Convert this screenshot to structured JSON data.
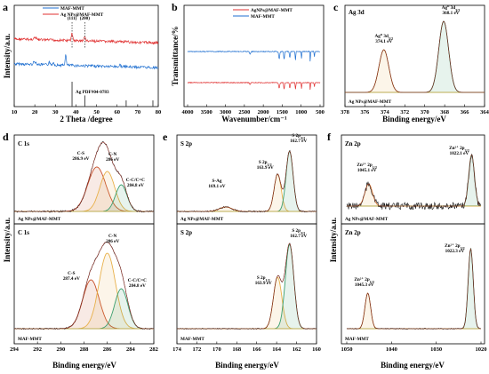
{
  "chart_data": [
    {
      "panel": "a",
      "type": "line",
      "xlabel": "2 Theta /degree",
      "ylabel": "Intensity/a.u.",
      "xlim": [
        10,
        80
      ],
      "xticks": [
        10,
        20,
        30,
        40,
        50,
        60,
        70,
        80
      ],
      "series": [
        {
          "name": "MAF-MMT",
          "color": "#1f6fd0"
        },
        {
          "name": "Ag NPs@MAF-MMT",
          "color": "#e03030"
        }
      ],
      "peak_labels": [
        {
          "x": 38.1,
          "text": "(111)"
        },
        {
          "x": 44.3,
          "text": "(200)"
        }
      ],
      "reference": {
        "name": "Ag PDF#04-0783",
        "x": [
          38.1,
          44.3,
          64.4,
          77.4
        ],
        "h": [
          1.0,
          0.45,
          0.25,
          0.25
        ]
      }
    },
    {
      "panel": "b",
      "type": "line",
      "xlabel": "Wavenumber/cm⁻¹",
      "ylabel": "Transmittance/%",
      "xlim": [
        4000,
        500
      ],
      "xticks": [
        4000,
        3500,
        3000,
        2500,
        2000,
        1500,
        1000,
        500
      ],
      "series": [
        {
          "name": "AgNPs@MAF-MMT",
          "color": "#e03030"
        },
        {
          "name": "MAF-MMT",
          "color": "#1f6fd0"
        }
      ]
    },
    {
      "panel": "c",
      "type": "line",
      "title": "Ag 3d",
      "xlabel": "Binding energy/eV",
      "xlim": [
        378,
        364
      ],
      "xticks": [
        378,
        376,
        374,
        372,
        370,
        368,
        366,
        364
      ],
      "sample": "Ag NPs@MAF-MMT",
      "peaks": [
        {
          "name": "Ag⁰ 3d5/2",
          "text1": "Ag⁰ 3d",
          "sub": "5/2",
          "center": 374.1,
          "label": "374.1 eV",
          "color": "#e8b04a"
        },
        {
          "name": "Ag⁰ 3d3/2",
          "text1": "Ag⁰ 3d",
          "sub": "3/2",
          "center": 368.1,
          "label": "368.1 eV",
          "color": "#3a9e6e"
        }
      ]
    },
    {
      "panel": "d",
      "type": "line",
      "title": "C 1s",
      "xlabel": "Binding energy/eV",
      "ylabel": "Intensity/a.u.",
      "xlim": [
        294,
        282
      ],
      "xticks": [
        294,
        292,
        290,
        288,
        286,
        284,
        282
      ],
      "top": {
        "sample": "Ag NPs@MAF-MMT",
        "peaks": [
          {
            "name": "C-S",
            "center": 286.9,
            "label": "286.9 eV",
            "color": "#c8502a"
          },
          {
            "name": "C-N",
            "center": 286,
            "label": "286 eV",
            "color": "#e8b04a"
          },
          {
            "name": "C-C/C=C",
            "center": 284.8,
            "label": "284.8 eV",
            "color": "#3a9e6e"
          }
        ]
      },
      "bottom": {
        "sample": "MAF-MMT",
        "peaks": [
          {
            "name": "C-S",
            "center": 287.4,
            "label": "287.4 eV",
            "color": "#c8502a"
          },
          {
            "name": "C-N",
            "center": 286,
            "label": "286 eV",
            "color": "#e8b04a"
          },
          {
            "name": "C-C/C=C",
            "center": 284.8,
            "label": "284.8 eV",
            "color": "#3a9e6e"
          }
        ]
      }
    },
    {
      "panel": "e",
      "type": "line",
      "title": "S 2p",
      "xlabel": "Binding energy/eV",
      "xlim": [
        174,
        160
      ],
      "xticks": [
        174,
        172,
        170,
        168,
        166,
        164,
        162,
        160
      ],
      "top": {
        "sample": "Ag NPs@MAF-MMT",
        "peaks": [
          {
            "name": "S-Ag",
            "text1": "S-Ag",
            "center": 169.1,
            "label": "169.1 eV",
            "color": "#e8b04a"
          },
          {
            "name": "S 2p1/2",
            "text1": "S 2p",
            "sub": "1/2",
            "center": 163.9,
            "label": "163.9 eV",
            "color": "#e8b04a"
          },
          {
            "name": "S 2p3/2",
            "text1": "S 2p",
            "sub": "3/2",
            "center": 162.7,
            "label": "162.7 eV",
            "color": "#3a9e6e"
          }
        ]
      },
      "bottom": {
        "sample": "MAF-MMT",
        "peaks": [
          {
            "name": "S 2p1/2",
            "text1": "S 2p",
            "sub": "1/2",
            "center": 163.9,
            "label": "163.9 eV",
            "color": "#e8b04a"
          },
          {
            "name": "S 2p3/2",
            "text1": "S 2p",
            "sub": "3/2",
            "center": 162.7,
            "label": "162.7 eV",
            "color": "#3a9e6e"
          }
        ]
      }
    },
    {
      "panel": "f",
      "type": "line",
      "title": "Zn 2p",
      "xlabel": "Binding energy/eV",
      "xlim": [
        1050,
        1020
      ],
      "xticks": [
        1050,
        1040,
        1030,
        1020
      ],
      "top": {
        "sample": "Ag NPs@MAF-MMT",
        "peaks": [
          {
            "name": "Zn²⁺ 2p1/2",
            "text1": "Zn²⁺ 2p",
            "sub": "1/2",
            "center": 1045.1,
            "label": "1045.1 eV",
            "color": "#e8b04a"
          },
          {
            "name": "Zn²⁺ 2p3/2",
            "text1": "Zn²⁺ 2p",
            "sub": "3/2",
            "center": 1022.1,
            "label": "1022.1 eV",
            "color": "#3a9e6e"
          }
        ]
      },
      "bottom": {
        "sample": "MAF-MMT",
        "peaks": [
          {
            "name": "Zn²⁺ 2p1/2",
            "text1": "Zn²⁺ 2p",
            "sub": "1/2",
            "center": 1045.3,
            "label": "1045.3 eV",
            "color": "#e8b04a"
          },
          {
            "name": "Zn²⁺ 2p3/2",
            "text1": "Zn²⁺ 2p",
            "sub": "3/2",
            "center": 1022.3,
            "label": "1022.3 eV",
            "color": "#3a9e6e"
          }
        ]
      }
    }
  ],
  "panel_labels": {
    "a": "a",
    "b": "b",
    "c": "c",
    "d": "d",
    "e": "e",
    "f": "f"
  }
}
